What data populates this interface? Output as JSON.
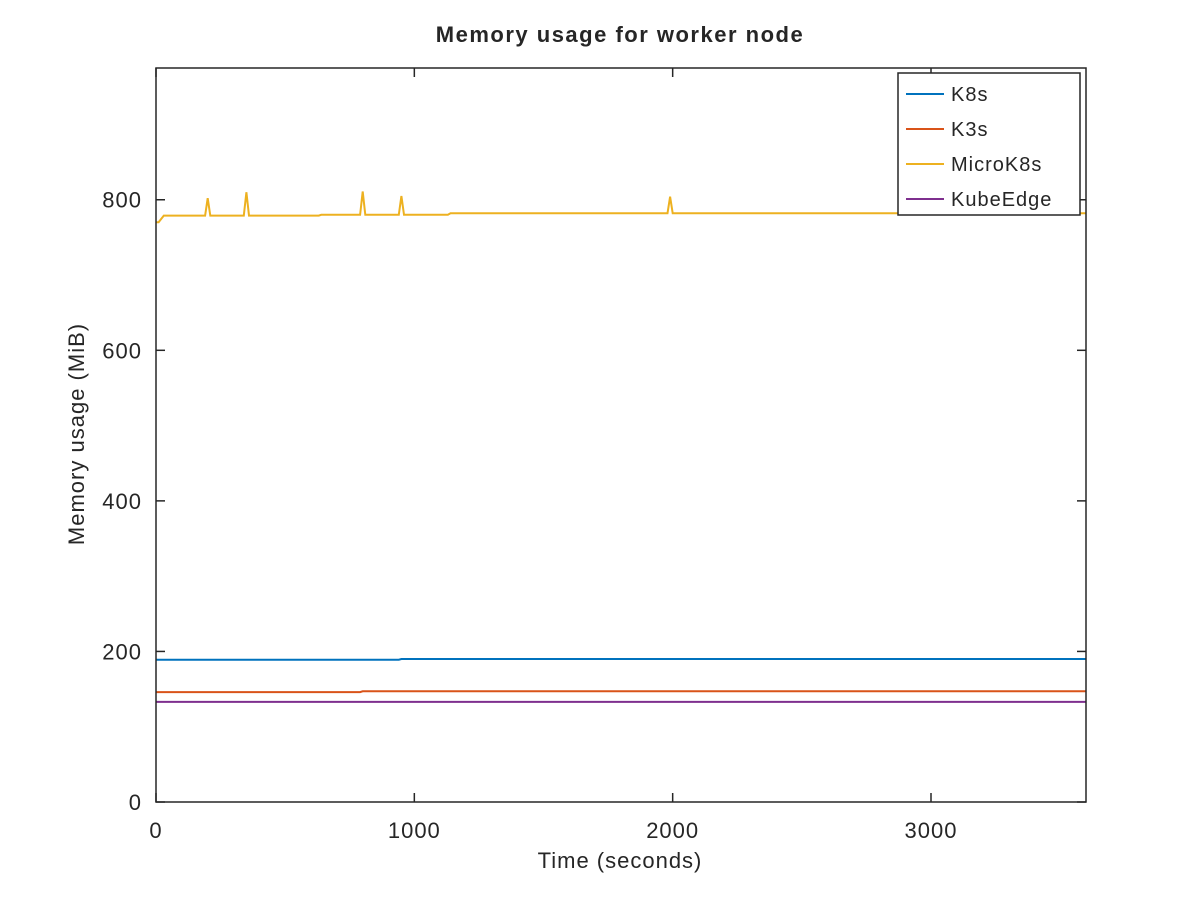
{
  "chart_data": {
    "type": "line",
    "title": "Memory usage for worker node",
    "xlabel": "Time (seconds)",
    "ylabel": "Memory usage (MiB)",
    "xlim": [
      0,
      3600
    ],
    "ylim": [
      0,
      975
    ],
    "xticks": [
      0,
      1000,
      2000,
      3000
    ],
    "yticks": [
      0,
      200,
      400,
      600,
      800
    ],
    "grid": false,
    "legend_position": "top-right",
    "series": [
      {
        "name": "K8s",
        "color": "#0072BD",
        "points": [
          [
            0,
            189
          ],
          [
            940,
            189
          ],
          [
            950,
            190
          ],
          [
            3600,
            190
          ]
        ]
      },
      {
        "name": "K3s",
        "color": "#D95319",
        "points": [
          [
            0,
            146
          ],
          [
            790,
            146
          ],
          [
            800,
            147
          ],
          [
            3600,
            147
          ]
        ]
      },
      {
        "name": "MicroK8s",
        "color": "#EDB120",
        "points": [
          [
            0,
            770
          ],
          [
            10,
            770
          ],
          [
            30,
            779
          ],
          [
            190,
            779
          ],
          [
            200,
            802
          ],
          [
            210,
            779
          ],
          [
            340,
            779
          ],
          [
            350,
            810
          ],
          [
            360,
            779
          ],
          [
            630,
            779
          ],
          [
            640,
            780
          ],
          [
            790,
            780
          ],
          [
            800,
            811
          ],
          [
            810,
            780
          ],
          [
            940,
            780
          ],
          [
            950,
            805
          ],
          [
            960,
            780
          ],
          [
            1130,
            780
          ],
          [
            1140,
            782
          ],
          [
            1980,
            782
          ],
          [
            1990,
            804
          ],
          [
            2000,
            782
          ],
          [
            3600,
            782
          ]
        ]
      },
      {
        "name": "KubeEdge",
        "color": "#7E2F8E",
        "points": [
          [
            0,
            133
          ],
          [
            3600,
            133
          ]
        ]
      }
    ]
  }
}
